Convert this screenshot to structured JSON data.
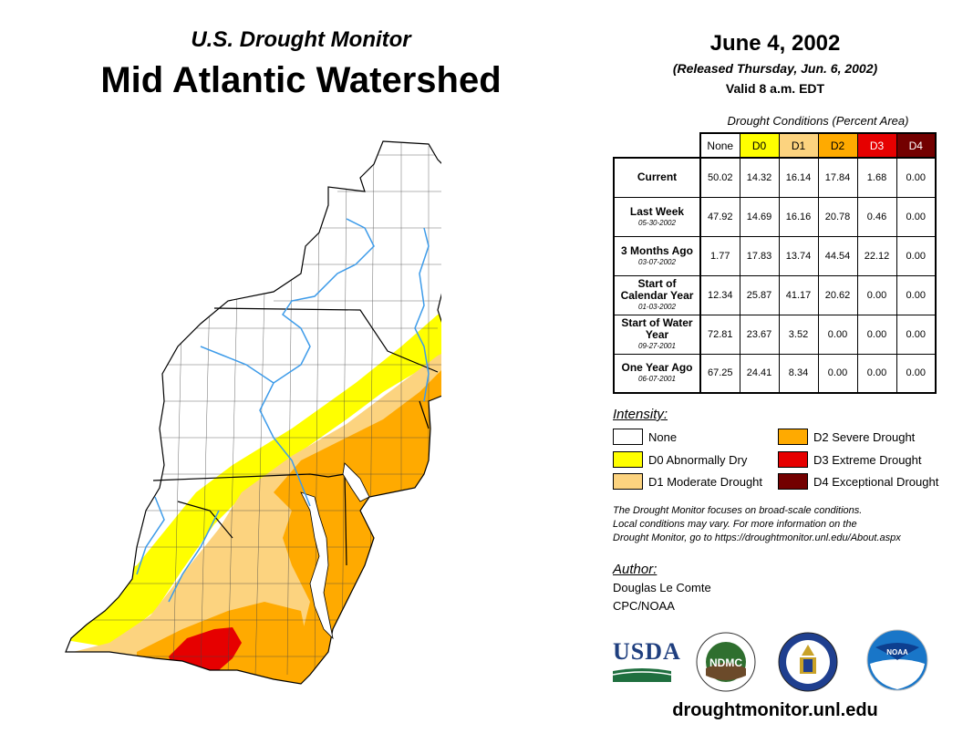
{
  "header": {
    "subtitle": "U.S. Drought Monitor",
    "title": "Mid Atlantic Watershed",
    "date": "June 4, 2002",
    "released": "(Released Thursday, Jun. 6, 2002)",
    "valid": "Valid 8 a.m. EDT"
  },
  "colors": {
    "none": "#ffffff",
    "D0": "#ffff00",
    "D1": "#fcd37f",
    "D2": "#ffaa00",
    "D3": "#e60000",
    "D4": "#730000",
    "water": "#3d9be9"
  },
  "table": {
    "caption": "Drought Conditions (Percent Area)",
    "columns": [
      "None",
      "D0",
      "D1",
      "D2",
      "D3",
      "D4"
    ],
    "rows": [
      {
        "label": "Current",
        "date": "",
        "values": [
          "50.02",
          "14.32",
          "16.14",
          "17.84",
          "1.68",
          "0.00"
        ]
      },
      {
        "label": "Last Week",
        "date": "05-30-2002",
        "values": [
          "47.92",
          "14.69",
          "16.16",
          "20.78",
          "0.46",
          "0.00"
        ]
      },
      {
        "label": "3 Months Ago",
        "date": "03-07-2002",
        "values": [
          "1.77",
          "17.83",
          "13.74",
          "44.54",
          "22.12",
          "0.00"
        ]
      },
      {
        "label": "Start of Calendar Year",
        "date": "01-03-2002",
        "values": [
          "12.34",
          "25.87",
          "41.17",
          "20.62",
          "0.00",
          "0.00"
        ]
      },
      {
        "label": "Start of Water Year",
        "date": "09-27-2001",
        "values": [
          "72.81",
          "23.67",
          "3.52",
          "0.00",
          "0.00",
          "0.00"
        ]
      },
      {
        "label": "One Year Ago",
        "date": "06-07-2001",
        "values": [
          "67.25",
          "24.41",
          "8.34",
          "0.00",
          "0.00",
          "0.00"
        ]
      }
    ]
  },
  "legend": {
    "title": "Intensity:",
    "items": [
      {
        "label": "None",
        "color": "#ffffff"
      },
      {
        "label": "D0 Abnormally Dry",
        "color": "#ffff00"
      },
      {
        "label": "D1 Moderate Drought",
        "color": "#fcd37f"
      },
      {
        "label": "D2 Severe Drought",
        "color": "#ffaa00"
      },
      {
        "label": "D3 Extreme Drought",
        "color": "#e60000"
      },
      {
        "label": "D4 Exceptional Drought",
        "color": "#730000"
      }
    ]
  },
  "note": {
    "line1": "The Drought Monitor focuses on broad-scale conditions.",
    "line2": "Local conditions may vary. For more information on the",
    "line3": "Drought Monitor, go to https://droughtmonitor.unl.edu/About.aspx"
  },
  "author": {
    "label": "Author:",
    "name": "Douglas Le Comte",
    "org": "CPC/NOAA"
  },
  "logos": {
    "usda": "USDA",
    "ndmc": "NDMC",
    "noaa": "NOAA"
  },
  "footer": {
    "site": "droughtmonitor.unl.edu"
  }
}
